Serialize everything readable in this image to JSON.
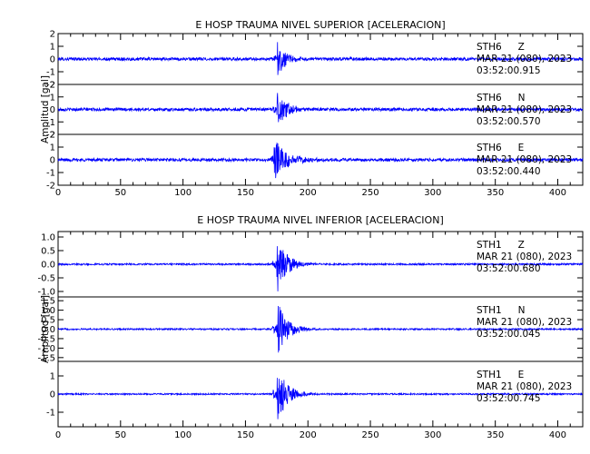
{
  "chart_data": [
    {
      "type": "line",
      "title": "E HOSP TRAUMA NIVEL SUPERIOR [ACELERACION]",
      "ylabel": "Amplitud  [gal]",
      "xlim": [
        0,
        420
      ],
      "x_ticks": [
        0,
        50,
        100,
        150,
        200,
        250,
        300,
        350,
        400
      ],
      "line_color": "#0000ff",
      "grid": false,
      "series": [
        {
          "station": "STH6",
          "component": "Z",
          "date_text": "MAR 21 (080), 2023",
          "time_text": "03:52:00.915",
          "ylim": [
            -2,
            2
          ],
          "y_ticks": [
            2,
            1,
            0,
            -1,
            -2
          ],
          "y_tick_labels": [
            "2",
            "1",
            "0",
            "-1",
            "-2"
          ],
          "noise": 0.12,
          "onset": 175,
          "peak": 1.85,
          "decay": 6
        },
        {
          "station": "STH6",
          "component": "N",
          "date_text": "MAR 21 (080), 2023",
          "time_text": "03:52:00.570",
          "ylim": [
            -2,
            2
          ],
          "y_ticks": [
            2,
            1,
            0,
            -1,
            -2
          ],
          "y_tick_labels": [
            "2",
            "1",
            "0",
            "-1",
            "-2"
          ],
          "noise": 0.12,
          "onset": 175,
          "peak": 1.8,
          "decay": 7
        },
        {
          "station": "STH6",
          "component": "E",
          "date_text": "MAR 21 (080), 2023",
          "time_text": "03:52:00.440",
          "ylim": [
            -2,
            2
          ],
          "y_ticks": [
            2,
            1,
            0,
            -1,
            -2
          ],
          "y_tick_labels": [
            "2",
            "1",
            "0",
            "-1",
            "-2"
          ],
          "noise": 0.12,
          "onset": 172,
          "peak": 1.9,
          "decay": 10
        }
      ]
    },
    {
      "type": "line",
      "title": "E HOSP TRAUMA NIVEL INFERIOR [ACELERACION]",
      "ylabel": "Amplitud  [gal]",
      "xlim": [
        0,
        420
      ],
      "x_ticks": [
        0,
        50,
        100,
        150,
        200,
        250,
        300,
        350,
        400
      ],
      "line_color": "#0000ff",
      "grid": false,
      "series": [
        {
          "station": "STH1",
          "component": "Z",
          "date_text": "MAR 21 (080), 2023",
          "time_text": "03:52:00.680",
          "ylim": [
            -1.2,
            1.2
          ],
          "y_ticks": [
            1.0,
            0.5,
            0.0,
            -0.5,
            -1.0
          ],
          "y_tick_labels": [
            "1.0",
            "0.5",
            "0.0",
            "-0.5",
            "-1.0"
          ],
          "noise": 0.03,
          "onset": 175,
          "peak": 1.1,
          "decay": 8
        },
        {
          "station": "STH1",
          "component": "N",
          "date_text": "MAR 21 (080), 2023",
          "time_text": "03:52:00.045",
          "ylim": [
            -1.7,
            1.7
          ],
          "y_ticks": [
            1.5,
            1.0,
            0.5,
            0.0,
            -0.5,
            -1.0,
            -1.5
          ],
          "y_tick_labels": [
            "1.5",
            "1.0",
            "0.5",
            "0.0",
            "-0.5",
            "-1.0",
            "-1.5"
          ],
          "noise": 0.04,
          "onset": 175,
          "peak": 1.6,
          "decay": 8
        },
        {
          "station": "STH1",
          "component": "E",
          "date_text": "MAR 21 (080), 2023",
          "time_text": "03:52:00.745",
          "ylim": [
            -1.8,
            1.8
          ],
          "y_ticks": [
            1,
            0,
            -1
          ],
          "y_tick_labels": [
            "1",
            "0",
            "-1"
          ],
          "noise": 0.04,
          "onset": 175,
          "peak": 1.7,
          "decay": 8
        }
      ]
    }
  ]
}
